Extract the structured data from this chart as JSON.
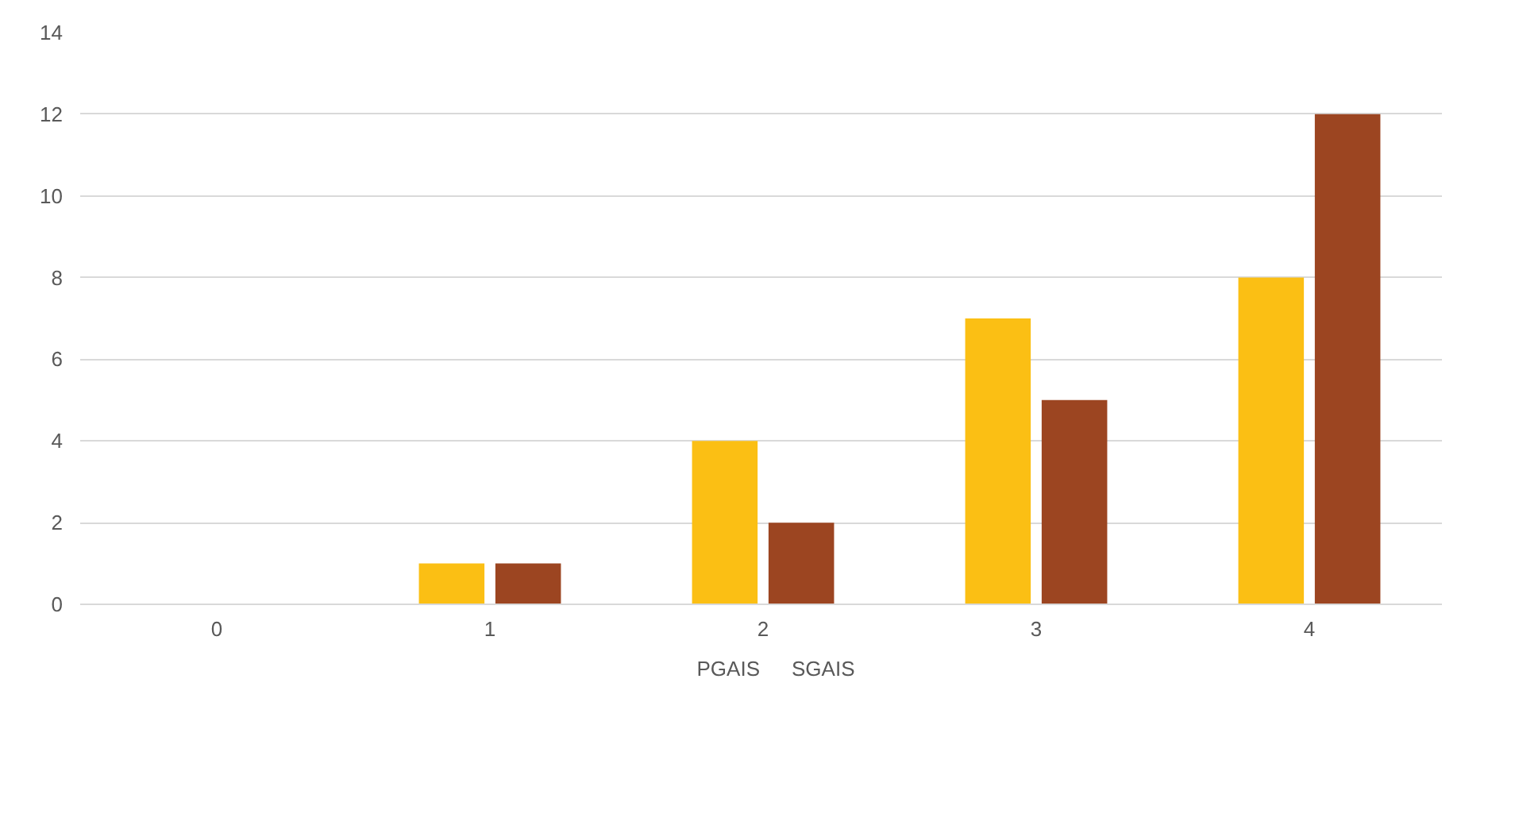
{
  "chart_data": {
    "type": "bar",
    "categories": [
      "0",
      "1",
      "2",
      "3",
      "4"
    ],
    "series": [
      {
        "name": "PGAIS",
        "color": "#fbbf14",
        "values": [
          0,
          1,
          4,
          7,
          8
        ]
      },
      {
        "name": "SGAIS",
        "color": "#9c4521",
        "values": [
          0,
          1,
          2,
          5,
          12
        ]
      }
    ],
    "ylim": [
      0,
      14
    ],
    "yticks": [
      0,
      2,
      4,
      6,
      8,
      10,
      12,
      14
    ],
    "grid": "y",
    "legend": "bottom"
  }
}
